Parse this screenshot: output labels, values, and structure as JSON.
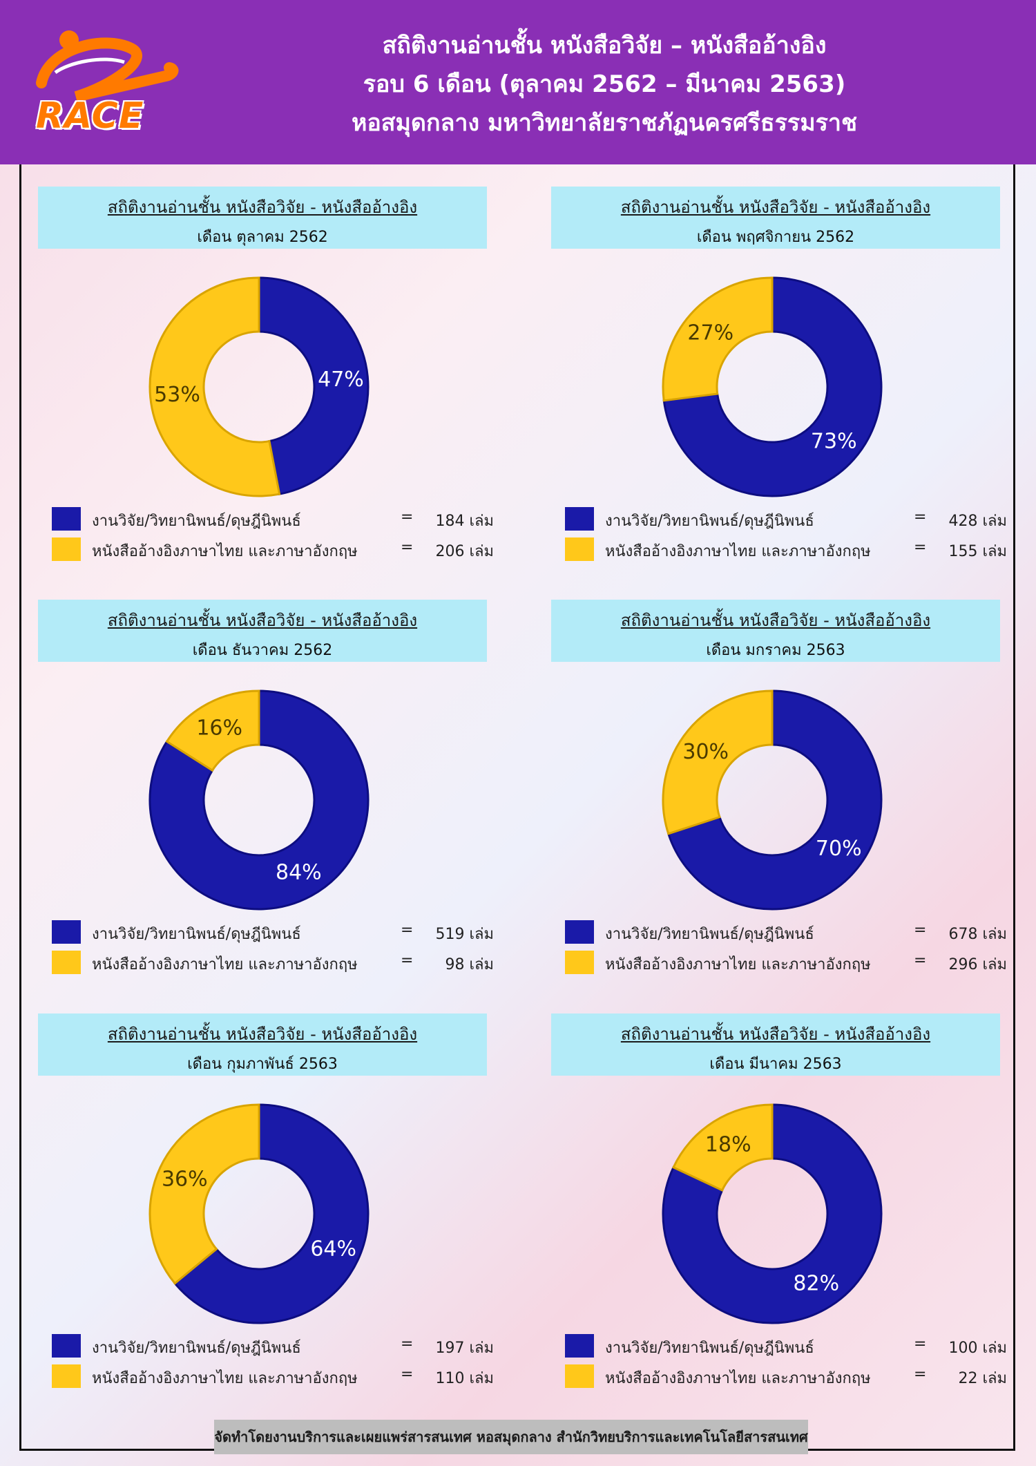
{
  "header": {
    "title_line1": "สถิติงานอ่านชั้น หนังสือวิจัย – หนังสืออ้างอิง",
    "title_line2": "รอบ 6 เดือน (ตุลาคม 2562 – มีนาคม 2563)",
    "title_line3": "หอสมุดกลาง มหาวิทยาลัยราชภัฏนครศรีธรรมราช",
    "logo_text": "RACE"
  },
  "colors": {
    "blue": "#1a1aa8",
    "yellow": "#ffc81a",
    "header_bg": "#8a2fb5",
    "panel_head_bg": "#b3ebf8"
  },
  "legend_labels": {
    "research": "งานวิจัย/วิทยานิพนธ์/ดุษฎีนิพนธ์",
    "reference": "หนังสืออ้างอิงภาษาไทย และภาษาอังกฤษ",
    "equals": "="
  },
  "panel_title": "สถิติงานอ่านชั้น หนังสือวิจัย - หนังสืออ้างอิง",
  "chart_data": [
    {
      "type": "pie",
      "subtitle": "เดือน ตุลาคม 2562",
      "slices": [
        {
          "label": "งานวิจัย/วิทยานิพนธ์/ดุษฎีนิพนธ์",
          "value": 184,
          "value_text": "184 เล่ม",
          "percent": 47,
          "percent_text": "47%"
        },
        {
          "label": "หนังสืออ้างอิงภาษาไทย และภาษาอังกฤษ",
          "value": 206,
          "value_text": "206 เล่ม",
          "percent": 53,
          "percent_text": "53%"
        }
      ]
    },
    {
      "type": "pie",
      "subtitle": "เดือน พฤศจิกายน 2562",
      "slices": [
        {
          "label": "งานวิจัย/วิทยานิพนธ์/ดุษฎีนิพนธ์",
          "value": 428,
          "value_text": "428 เล่ม",
          "percent": 73,
          "percent_text": "73%"
        },
        {
          "label": "หนังสืออ้างอิงภาษาไทย และภาษาอังกฤษ",
          "value": 155,
          "value_text": "155 เล่ม",
          "percent": 27,
          "percent_text": "27%"
        }
      ]
    },
    {
      "type": "pie",
      "subtitle": "เดือน ธันวาคม 2562",
      "slices": [
        {
          "label": "งานวิจัย/วิทยานิพนธ์/ดุษฎีนิพนธ์",
          "value": 519,
          "value_text": "519 เล่ม",
          "percent": 84,
          "percent_text": "84%"
        },
        {
          "label": "หนังสืออ้างอิงภาษาไทย และภาษาอังกฤษ",
          "value": 98,
          "value_text": "98 เล่ม",
          "percent": 16,
          "percent_text": "16%"
        }
      ]
    },
    {
      "type": "pie",
      "subtitle": "เดือน มกราคม 2563",
      "slices": [
        {
          "label": "งานวิจัย/วิทยานิพนธ์/ดุษฎีนิพนธ์",
          "value": 678,
          "value_text": "678 เล่ม",
          "percent": 70,
          "percent_text": "70%"
        },
        {
          "label": "หนังสืออ้างอิงภาษาไทย และภาษาอังกฤษ",
          "value": 296,
          "value_text": "296 เล่ม",
          "percent": 30,
          "percent_text": "30%"
        }
      ]
    },
    {
      "type": "pie",
      "subtitle": "เดือน กุมภาพันธ์ 2563",
      "slices": [
        {
          "label": "งานวิจัย/วิทยานิพนธ์/ดุษฎีนิพนธ์",
          "value": 197,
          "value_text": "197 เล่ม",
          "percent": 64,
          "percent_text": "64%"
        },
        {
          "label": "หนังสืออ้างอิงภาษาไทย และภาษาอังกฤษ",
          "value": 110,
          "value_text": "110 เล่ม",
          "percent": 36,
          "percent_text": "36%"
        }
      ]
    },
    {
      "type": "pie",
      "subtitle": "เดือน มีนาคม 2563",
      "slices": [
        {
          "label": "งานวิจัย/วิทยานิพนธ์/ดุษฎีนิพนธ์",
          "value": 100,
          "value_text": "100 เล่ม",
          "percent": 82,
          "percent_text": "82%"
        },
        {
          "label": "หนังสืออ้างอิงภาษาไทย และภาษาอังกฤษ",
          "value": 22,
          "value_text": "22 เล่ม",
          "percent": 18,
          "percent_text": "18%"
        }
      ]
    }
  ],
  "footer": {
    "text": "จัดทำโดยงานบริการและเผยแพร่สารสนเทศ หอสมุดกลาง สำนักวิทยบริการและเทคโนโลยีสารสนเทศ"
  }
}
